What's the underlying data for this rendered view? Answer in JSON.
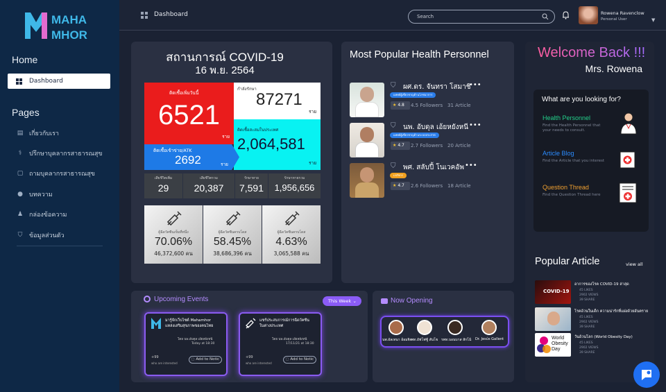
{
  "brand": {
    "line1": "MAHA",
    "line2": "MHOR"
  },
  "sidebar": {
    "home_heading": "Home",
    "dashboard_label": "Dashboard",
    "pages_heading": "Pages",
    "items": [
      {
        "label": "เกี่ยวกับเรา",
        "icon": "book-icon"
      },
      {
        "label": "ปรึกษาบุคลากรสาธารณสุข",
        "icon": "stethoscope-icon"
      },
      {
        "label": "ถามบุคลากรสาธารณสุข",
        "icon": "chat-icon"
      },
      {
        "label": "บทความ",
        "icon": "bulb-icon"
      },
      {
        "label": "กล่องข้อความ",
        "icon": "users-icon"
      },
      {
        "label": "ข้อมูลส่วนตัว",
        "icon": "shield-icon"
      }
    ]
  },
  "topbar": {
    "breadcrumb": "Dashboard",
    "search_placeholder": "Search",
    "user_name": "Rowena Ravenclow",
    "user_role": "Personal User"
  },
  "covid": {
    "title": "สถานการณ์ COVID-19",
    "date": "16 พ.ย. 2564",
    "new_cases_label": "ติดเชื้อเพิ่มวันนี้",
    "new_cases": "6521",
    "new_cases_unit": "ราย",
    "treating_label": "กำลังรักษา",
    "treating": "87271",
    "treating_unit": "ราย",
    "atk_label": "ติดเชื้อเข้าข่าย/ATK",
    "atk": "2692",
    "atk_unit": "ราย",
    "cumulative_label": "ติดเชื้อสะสมในประเทศ",
    "cumulative": "2,064,581",
    "cumulative_unit": "ราย",
    "small": [
      {
        "label": "เสียชีวิตเพิ่ม",
        "value": "29"
      },
      {
        "label": "เสียชีวิตรวม",
        "value": "20,387"
      },
      {
        "label": "รักษาหาย",
        "value": "7,591"
      },
      {
        "label": "รักษาหายรวม",
        "value": "1,956,656"
      }
    ],
    "vaccine": [
      {
        "label": "ผู้ฉีดวัคซีนเข็มที่หนึ่ง",
        "percent": "70.06%",
        "count": "46,372,600 คน"
      },
      {
        "label": "ผู้ฉีดวัคซีนครบโดส",
        "percent": "58.45%",
        "count": "38,686,396 คน"
      },
      {
        "label": "ผู้ฉีดวัคซีนครบโดส",
        "percent": "4.63%",
        "count": "3,065,588 คน"
      }
    ]
  },
  "personnel": {
    "title": "Most Popular Health Personnel",
    "items": [
      {
        "name": "ผศ.ดร. จันทรา โสมาชิ",
        "badge": "แพทย์ผู้เชี่ยวชาญด้านโภชนาการ",
        "rating": "4.8",
        "followers": "4.5 Followers",
        "articles": "31 Article",
        "badge_color": "#2b7de9"
      },
      {
        "name": "นพ. อับดุล เอ้ยหยังหนี",
        "badge": "แพทย์ผู้เชี่ยวชาญด้านระบบประสาท",
        "rating": "4.7",
        "followers": "2.7 Followers",
        "articles": "20 Article",
        "badge_color": "#2b7de9"
      },
      {
        "name": "พศ. สลับปี้ โนเวคอัพ",
        "badge": "เภสัชกร",
        "rating": "4.7",
        "followers": "2.6 Followers",
        "articles": "18 Article",
        "badge_color": "#f0a020"
      }
    ]
  },
  "welcome": {
    "title": "Welcome Back !!!",
    "name": "Mrs. Rowena",
    "looking_title": "What are you looking for?",
    "options": [
      {
        "title": "Health Personnel",
        "desc1": "Find the Health Personnel that",
        "desc2": "your needs to consult.",
        "color": "#23d18b"
      },
      {
        "title": "Article Blog",
        "desc1": "Find the Article that you interest",
        "desc2": "",
        "color": "#2b8cff"
      },
      {
        "title": "Question Thread",
        "desc1": "Find the Question Thread here",
        "desc2": "",
        "color": "#f0a030"
      }
    ]
  },
  "popular_article": {
    "title": "Popular Article",
    "view_all": "view all",
    "items": [
      {
        "title": "อาการของโรค COVID-19 ล่าสุด",
        "likes": "45 LIKES",
        "views": "2902 VIEWS",
        "shares": "39 SHARE"
      },
      {
        "title": "โรคอ้วนในเด็ก ความน่ารักที่แฝงด้วยอันตราย",
        "likes": "45 LIKES",
        "views": "2902 VIEWS",
        "shares": "39 SHARE"
      },
      {
        "title": "วันอ้วนโลก (World Obesity Day)",
        "likes": "45 LIKES",
        "views": "2902 VIEWS",
        "shares": "39 SHARE"
      }
    ]
  },
  "events": {
    "title": "Upcoming Events",
    "filter": "This Week",
    "cards": [
      {
        "title1": "มารู้จักเว็บไซต์ Mahamhor",
        "title2": "แหล่งเสริมสุขภาพของคนไทย",
        "by": "โดย นพ.อับดุล เอ้ยหยังหนี",
        "when": "Today at 18:30",
        "interest": "who are interested",
        "count": "+99",
        "button": "Add to Notic"
      },
      {
        "title1": "แชร์ประสบการณ์การฉีดวัคซีน",
        "title2": "ในต่างประเทศ",
        "by": "โดย นพ.อับดุล เอ้ยหยังหนี",
        "when": "17/11/21 at 18:30",
        "interest": "who are interested",
        "count": "+99",
        "button": "Add to Notic"
      }
    ]
  },
  "now_opening": {
    "title": "Now Opening",
    "people": [
      {
        "name": "นพ.อัลเทนา อ้อมจิต"
      },
      {
        "name": "พท.อัฟโฟซู้ สันโข"
      },
      {
        "name": "รพท.บอนบาส สักโน้"
      },
      {
        "name": "Dr. Jesús Gallent"
      }
    ]
  }
}
